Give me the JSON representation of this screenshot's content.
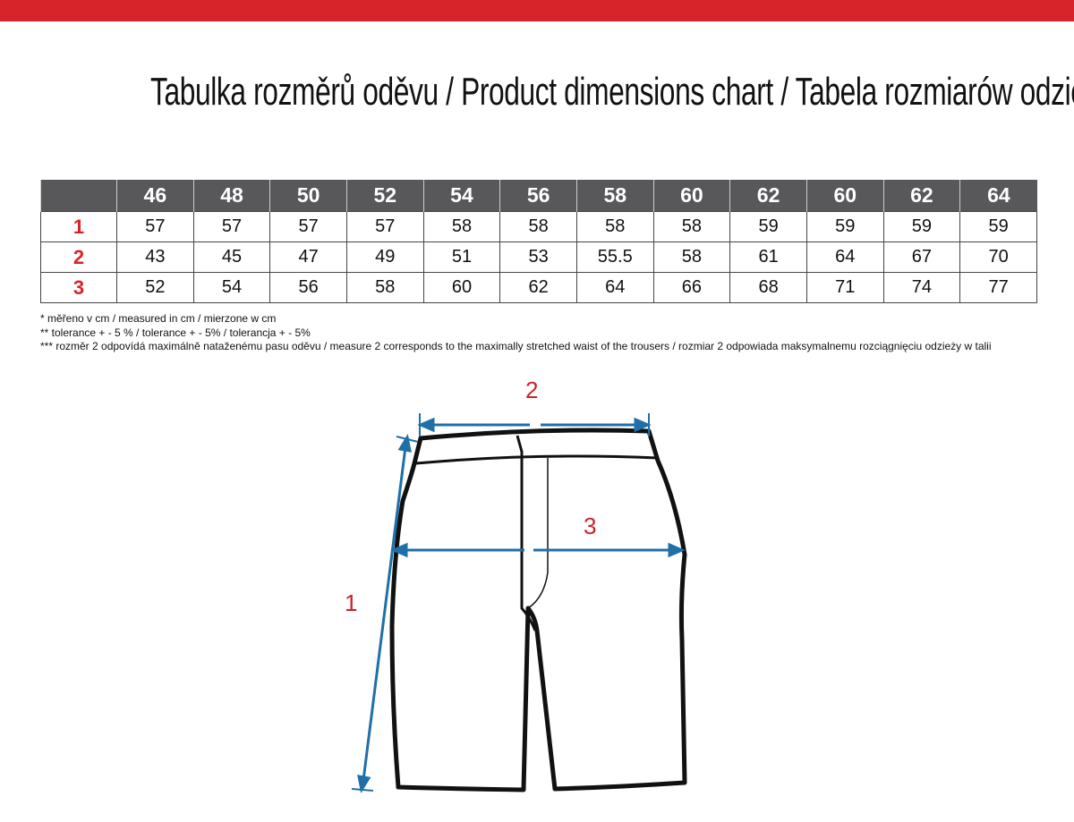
{
  "title": "Tabulka rozměrů oděvu / Product dimensions chart / Tabela rozmiarów odzieży",
  "table": {
    "headers": [
      "46",
      "48",
      "50",
      "52",
      "54",
      "56",
      "58",
      "60",
      "62",
      "60",
      "62",
      "64"
    ],
    "rows": [
      {
        "label": "1",
        "values": [
          "57",
          "57",
          "57",
          "57",
          "58",
          "58",
          "58",
          "58",
          "59",
          "59",
          "59",
          "59"
        ]
      },
      {
        "label": "2",
        "values": [
          "43",
          "45",
          "47",
          "49",
          "51",
          "53",
          "55.5",
          "58",
          "61",
          "64",
          "67",
          "70"
        ]
      },
      {
        "label": "3",
        "values": [
          "52",
          "54",
          "56",
          "58",
          "60",
          "62",
          "64",
          "66",
          "68",
          "71",
          "74",
          "77"
        ]
      }
    ]
  },
  "notes": [
    "* měřeno v cm / measured in cm / mierzone w cm",
    "** tolerance + - 5 % / tolerance + - 5% / tolerancja + - 5%",
    "*** rozměr 2 odpovídá maximálně nataženému pasu oděvu / measure 2 corresponds to the maximally stretched waist of the trousers / rozmiar 2 odpowiada maksymalnemu rozciągnięciu odzieży w talii"
  ],
  "diagram": {
    "label_1": "1",
    "label_2": "2",
    "label_3": "3"
  },
  "colors": {
    "accent": "#d7242b",
    "header": "#58585a",
    "arrow": "#1f6fa8"
  }
}
